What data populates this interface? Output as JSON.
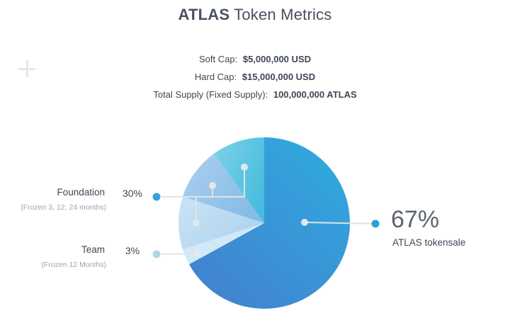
{
  "title": {
    "brand": "ATLAS",
    "rest": "Token Metrics"
  },
  "metrics": [
    {
      "label": "Soft Cap:",
      "value": "$5,000,000 USD"
    },
    {
      "label": "Hard Cap:",
      "value": "$15,000,000 USD"
    },
    {
      "label": "Total Supply (Fixed Supply):",
      "value": "100,000,000 ATLAS"
    }
  ],
  "legend": {
    "foundation": {
      "name": "Foundation",
      "percent": "30%",
      "note": "(Frozen 3, 12, 24 months)"
    },
    "team": {
      "name": "Team",
      "percent": "3%",
      "note": "(Frozen 12 Months)"
    },
    "tokensale": {
      "percent": "67%",
      "name": "ATLAS tokensale"
    }
  },
  "chart_data": {
    "type": "pie",
    "title": "ATLAS Token Metrics",
    "start_angle_deg": 0,
    "direction": "clockwise",
    "legend_position": "callouts",
    "slices": [
      {
        "label": "ATLAS tokensale",
        "value": 67,
        "color": "#2FA7DB",
        "gradient": [
          "#2FAADE",
          "#4381CF"
        ]
      },
      {
        "label": "Team",
        "value": 3,
        "note": "(Frozen 12 Months)",
        "color": "#D2E8F6"
      },
      {
        "label": "Foundation",
        "value": 30,
        "note": "(Frozen 3, 12, 24 months)",
        "sub_values": [
          10,
          10,
          10
        ],
        "sub_colors": [
          "#BBDCF2",
          "#8FC4EA",
          "#55C2E1"
        ],
        "sub_gradients": [
          [
            "#CAE3F5",
            "#ACD3EF"
          ],
          [
            "#ABD0EE",
            "#84BBE7"
          ],
          [
            "#7DD1E6",
            "#46BDDE"
          ]
        ]
      }
    ]
  },
  "colors": {
    "background": "#FFFFFF",
    "title_text": "#47515F",
    "body_text": "#3E4754",
    "muted_text": "#9CA5B0",
    "big_percent_text": "#5D6571",
    "connector_line": "#DEE3E8",
    "pie_dot": "#E3E8EC",
    "foundation_dot": "#3AA2D8",
    "team_dot": "#AFD6EB",
    "tokensale_dot": "#2C9FD8",
    "plus_mark": "#E2E8EC"
  }
}
